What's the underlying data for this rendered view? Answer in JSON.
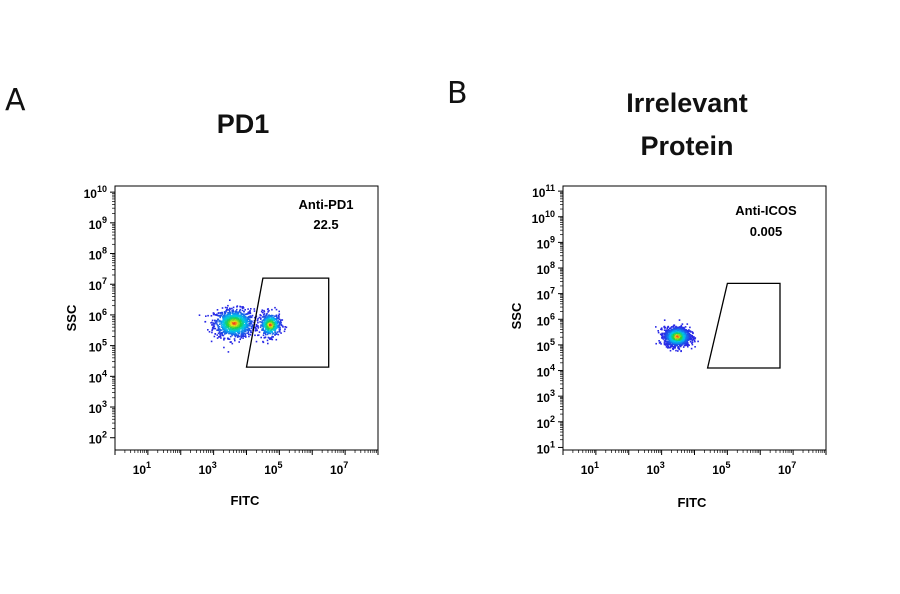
{
  "chart_data": [
    {
      "panel_letter": "A",
      "type": "scatter",
      "title_lines": [
        "PD1"
      ],
      "xlabel": "FITC",
      "ylabel": "SSC",
      "x_scale": "log10",
      "y_scale": "log10",
      "xlim": [
        0,
        8
      ],
      "ylim": [
        1.6,
        10.2
      ],
      "x_ticks": [
        {
          "base": "10",
          "exp": "1"
        },
        {
          "base": "10",
          "exp": "3"
        },
        {
          "base": "10",
          "exp": "5"
        },
        {
          "base": "10",
          "exp": "7"
        }
      ],
      "x_tick_values": [
        1,
        3,
        5,
        7
      ],
      "y_ticks": [
        {
          "base": "10",
          "exp": "2"
        },
        {
          "base": "10",
          "exp": "3"
        },
        {
          "base": "10",
          "exp": "4"
        },
        {
          "base": "10",
          "exp": "5"
        },
        {
          "base": "10",
          "exp": "6"
        },
        {
          "base": "10",
          "exp": "7"
        },
        {
          "base": "10",
          "exp": "8"
        },
        {
          "base": "10",
          "exp": "9"
        },
        {
          "base": "10",
          "exp": "10"
        }
      ],
      "y_tick_values": [
        2,
        3,
        4,
        5,
        6,
        7,
        8,
        9,
        10
      ],
      "gate": {
        "label": "Anti-PD1",
        "value": "22.5",
        "vertices_log10": [
          [
            4.0,
            4.3
          ],
          [
            6.5,
            4.3
          ],
          [
            6.5,
            7.2
          ],
          [
            4.5,
            7.2
          ]
        ]
      },
      "populations_log10": [
        {
          "x_center": 3.6,
          "y_center": 5.75,
          "x_spread": 0.55,
          "y_spread": 0.42,
          "weight": 0.7
        },
        {
          "x_center": 4.7,
          "y_center": 5.7,
          "x_spread": 0.3,
          "y_spread": 0.35,
          "weight": 0.3
        }
      ]
    },
    {
      "panel_letter": "B",
      "type": "scatter",
      "title_lines": [
        "Irrelevant",
        "Protein"
      ],
      "xlabel": "FITC",
      "ylabel": "SSC",
      "x_scale": "log10",
      "y_scale": "log10",
      "xlim": [
        0,
        8
      ],
      "ylim": [
        0.9,
        11.2
      ],
      "x_ticks": [
        {
          "base": "10",
          "exp": "1"
        },
        {
          "base": "10",
          "exp": "3"
        },
        {
          "base": "10",
          "exp": "5"
        },
        {
          "base": "10",
          "exp": "7"
        }
      ],
      "x_tick_values": [
        1,
        3,
        5,
        7
      ],
      "y_ticks": [
        {
          "base": "10",
          "exp": "1"
        },
        {
          "base": "10",
          "exp": "2"
        },
        {
          "base": "10",
          "exp": "3"
        },
        {
          "base": "10",
          "exp": "4"
        },
        {
          "base": "10",
          "exp": "5"
        },
        {
          "base": "10",
          "exp": "6"
        },
        {
          "base": "10",
          "exp": "7"
        },
        {
          "base": "10",
          "exp": "8"
        },
        {
          "base": "10",
          "exp": "9"
        },
        {
          "base": "10",
          "exp": "10"
        },
        {
          "base": "10",
          "exp": "11"
        }
      ],
      "y_tick_values": [
        1,
        2,
        3,
        4,
        5,
        6,
        7,
        8,
        9,
        10,
        11
      ],
      "gate": {
        "label": "Anti-ICOS",
        "value": "0.005",
        "vertices_log10": [
          [
            4.4,
            4.1
          ],
          [
            6.6,
            4.1
          ],
          [
            6.6,
            7.4
          ],
          [
            5.0,
            7.4
          ]
        ]
      },
      "populations_log10": [
        {
          "x_center": 3.45,
          "y_center": 5.35,
          "x_spread": 0.35,
          "y_spread": 0.33,
          "weight": 1.0
        }
      ]
    }
  ]
}
